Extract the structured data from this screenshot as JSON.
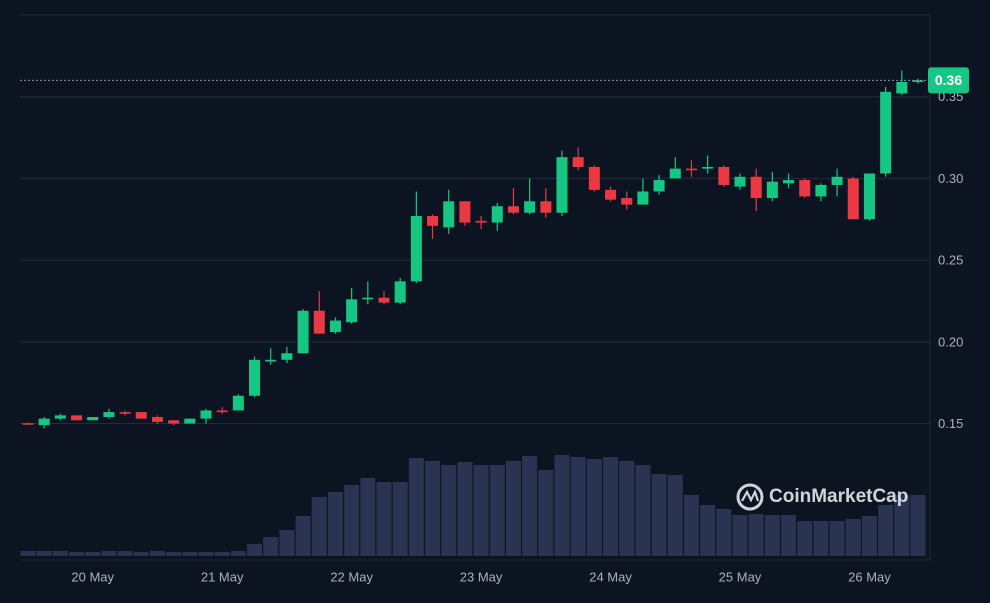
{
  "chart_data": {
    "type": "candlestick",
    "watermark": "CoinMarketCap",
    "categories": [
      null,
      null,
      null,
      null,
      "20 May",
      null,
      null,
      null,
      null,
      null,
      null,
      null,
      "21 May",
      null,
      null,
      null,
      null,
      null,
      null,
      null,
      "22 May",
      null,
      null,
      null,
      null,
      null,
      null,
      null,
      "23 May",
      null,
      null,
      null,
      null,
      null,
      null,
      null,
      "24 May",
      null,
      null,
      null,
      null,
      null,
      null,
      null,
      "25 May",
      null,
      null,
      null,
      null,
      null,
      null,
      null,
      "26 May",
      null,
      null,
      null
    ],
    "open": [
      0.1502,
      0.149,
      0.153,
      0.155,
      0.152,
      0.154,
      0.157,
      0.157,
      0.154,
      0.152,
      0.15,
      0.153,
      0.158,
      0.158,
      0.167,
      0.188,
      0.189,
      0.193,
      0.219,
      0.206,
      0.212,
      0.226,
      0.227,
      0.224,
      0.237,
      0.277,
      0.27,
      0.286,
      0.274,
      0.273,
      0.283,
      0.279,
      0.286,
      0.279,
      0.313,
      0.307,
      0.293,
      0.288,
      0.284,
      0.292,
      0.3,
      0.306,
      0.306,
      0.307,
      0.295,
      0.301,
      0.288,
      0.297,
      0.299,
      0.289,
      0.296,
      0.3,
      0.275,
      0.303,
      0.352,
      0.359
    ],
    "high": [
      0.1505,
      0.154,
      0.156,
      0.155,
      0.154,
      0.159,
      0.158,
      0.157,
      0.155,
      0.152,
      0.153,
      0.159,
      0.16,
      0.168,
      0.191,
      0.196,
      0.197,
      0.22,
      0.231,
      0.215,
      0.233,
      0.237,
      0.231,
      0.239,
      0.292,
      0.278,
      0.293,
      0.286,
      0.277,
      0.285,
      0.294,
      0.3,
      0.294,
      0.317,
      0.319,
      0.308,
      0.295,
      0.292,
      0.3,
      0.302,
      0.313,
      0.311,
      0.314,
      0.308,
      0.303,
      0.306,
      0.304,
      0.303,
      0.3,
      0.297,
      0.306,
      0.301,
      0.303,
      0.356,
      0.366,
      0.361
    ],
    "low": [
      0.1495,
      0.147,
      0.152,
      0.152,
      0.152,
      0.153,
      0.155,
      0.153,
      0.15,
      0.149,
      0.15,
      0.15,
      0.156,
      0.158,
      0.166,
      0.186,
      0.187,
      0.193,
      0.205,
      0.205,
      0.211,
      0.223,
      0.223,
      0.223,
      0.236,
      0.263,
      0.266,
      0.271,
      0.269,
      0.268,
      0.278,
      0.278,
      0.276,
      0.277,
      0.305,
      0.292,
      0.286,
      0.281,
      0.284,
      0.29,
      0.3,
      0.301,
      0.303,
      0.295,
      0.293,
      0.28,
      0.286,
      0.294,
      0.288,
      0.286,
      0.289,
      0.275,
      0.274,
      0.301,
      0.351,
      0.358
    ],
    "close": [
      0.1498,
      0.153,
      0.155,
      0.152,
      0.154,
      0.157,
      0.156,
      0.153,
      0.151,
      0.15,
      0.153,
      0.158,
      0.157,
      0.167,
      0.189,
      0.189,
      0.193,
      0.219,
      0.205,
      0.213,
      0.226,
      0.227,
      0.224,
      0.237,
      0.277,
      0.271,
      0.286,
      0.273,
      0.273,
      0.283,
      0.279,
      0.286,
      0.279,
      0.313,
      0.307,
      0.293,
      0.287,
      0.284,
      0.292,
      0.299,
      0.306,
      0.305,
      0.307,
      0.296,
      0.301,
      0.288,
      0.298,
      0.299,
      0.289,
      0.296,
      0.301,
      0.275,
      0.303,
      0.353,
      0.359,
      0.36
    ],
    "volume": [
      5,
      5,
      5,
      4,
      4,
      5,
      5,
      4,
      5,
      4,
      4,
      4,
      4,
      5,
      12,
      19,
      26,
      40,
      59,
      64,
      71,
      78,
      74,
      74,
      98,
      95,
      91,
      94,
      91,
      91,
      95,
      100,
      86,
      101,
      99,
      97,
      99,
      95,
      91,
      82,
      81,
      61,
      51,
      47,
      41,
      42,
      41,
      41,
      35,
      35,
      35,
      37,
      40,
      51,
      61,
      61
    ],
    "up_color": "#16c784",
    "down_color": "#ea3943",
    "volume_color": "#2a3452",
    "last_value": 0.36,
    "ylim": [
      0.0665,
      0.4
    ],
    "yticks": [
      0.15,
      {
        "value": 0.2,
        "label": "0.20"
      },
      0.25,
      {
        "value": 0.3,
        "label": "0.30"
      },
      0.35
    ],
    "grid": true
  }
}
